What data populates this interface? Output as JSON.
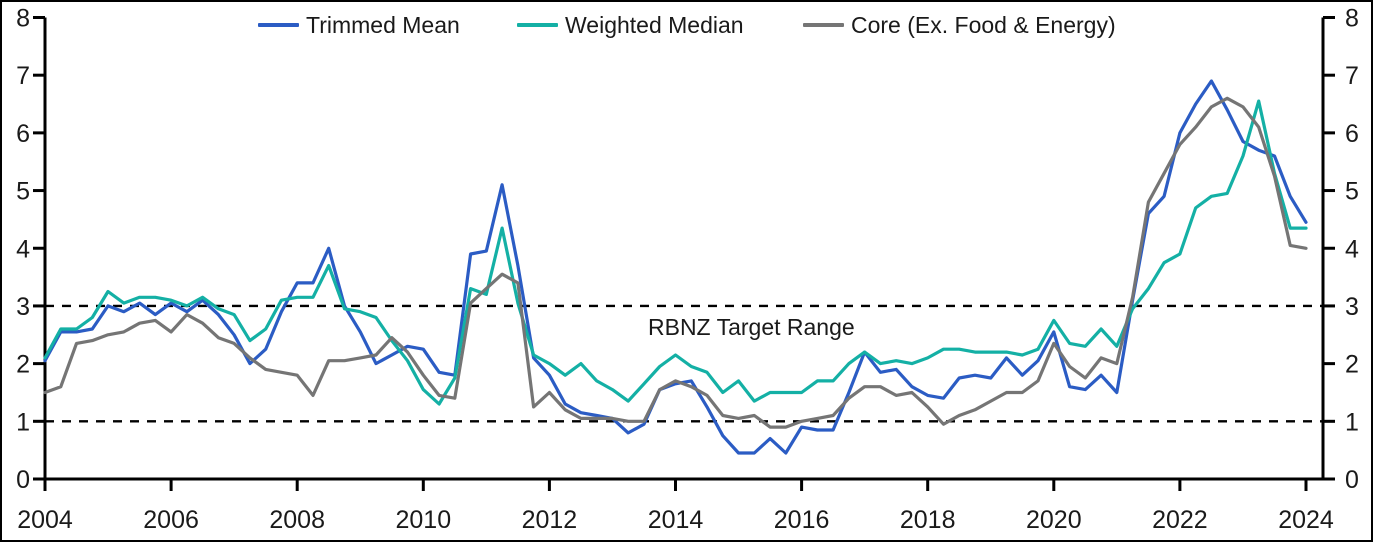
{
  "legend": [
    {
      "label": "Trimmed Mean",
      "color": "#2b5cc4"
    },
    {
      "label": "Weighted Median",
      "color": "#14b0a5"
    },
    {
      "label": "Core (Ex. Food & Energy)",
      "color": "#757575"
    }
  ],
  "annotation": {
    "target_range_label": "RBNZ Target Range"
  },
  "colors": {
    "axis": "#000000",
    "dashed_line": "#000000",
    "text": "#1a1a1a",
    "background": "#ffffff"
  },
  "chart_data": {
    "type": "line",
    "title": "",
    "xlabel": "",
    "ylabel": "",
    "ylim": [
      0,
      8
    ],
    "y_ticks": [
      0,
      1,
      2,
      3,
      4,
      5,
      6,
      7,
      8
    ],
    "x_tick_labels": [
      "2004",
      "2006",
      "2008",
      "2010",
      "2012",
      "2014",
      "2016",
      "2018",
      "2020",
      "2022",
      "2024"
    ],
    "x_start": "2004Q1",
    "x_end": "2024Q1",
    "frequency": "quarterly",
    "grid": false,
    "legend_position": "top",
    "target_range_lines": [
      1,
      3
    ],
    "series": [
      {
        "name": "Trimmed Mean",
        "color": "#2b5cc4",
        "values": [
          2.05,
          2.55,
          2.55,
          2.6,
          3.0,
          2.9,
          3.05,
          2.85,
          3.05,
          2.9,
          3.1,
          2.85,
          2.5,
          2.0,
          2.25,
          2.9,
          3.4,
          3.4,
          4.0,
          3.0,
          2.55,
          2.0,
          2.15,
          2.3,
          2.25,
          1.85,
          1.8,
          3.9,
          3.95,
          5.1,
          3.7,
          2.1,
          1.8,
          1.3,
          1.15,
          1.1,
          1.05,
          0.8,
          0.95,
          1.55,
          1.65,
          1.7,
          1.25,
          0.75,
          0.45,
          0.45,
          0.7,
          0.45,
          0.9,
          0.85,
          0.85,
          1.5,
          2.2,
          1.85,
          1.9,
          1.6,
          1.45,
          1.4,
          1.75,
          1.8,
          1.75,
          2.1,
          1.8,
          2.05,
          2.55,
          1.6,
          1.55,
          1.8,
          1.5,
          3.1,
          4.6,
          4.9,
          6.0,
          6.5,
          6.9,
          6.4,
          5.85,
          5.7,
          5.6,
          4.9,
          4.45
        ]
      },
      {
        "name": "Weighted Median",
        "color": "#14b0a5",
        "values": [
          2.1,
          2.6,
          2.6,
          2.8,
          3.25,
          3.05,
          3.15,
          3.15,
          3.1,
          3.0,
          3.15,
          2.95,
          2.85,
          2.4,
          2.6,
          3.1,
          3.15,
          3.15,
          3.7,
          2.95,
          2.9,
          2.8,
          2.4,
          2.05,
          1.55,
          1.3,
          1.75,
          3.3,
          3.2,
          4.35,
          3.05,
          2.15,
          2.0,
          1.8,
          2.0,
          1.7,
          1.55,
          1.35,
          1.65,
          1.95,
          2.15,
          1.95,
          1.85,
          1.5,
          1.7,
          1.35,
          1.5,
          1.5,
          1.5,
          1.7,
          1.7,
          2.0,
          2.2,
          2.0,
          2.05,
          2.0,
          2.1,
          2.25,
          2.25,
          2.2,
          2.2,
          2.2,
          2.15,
          2.25,
          2.75,
          2.35,
          2.3,
          2.6,
          2.3,
          2.95,
          3.3,
          3.75,
          3.9,
          4.7,
          4.9,
          4.95,
          5.6,
          6.55,
          5.3,
          4.35,
          4.35
        ]
      },
      {
        "name": "Core (Ex. Food & Energy)",
        "color": "#757575",
        "values": [
          1.5,
          1.6,
          2.35,
          2.4,
          2.5,
          2.55,
          2.7,
          2.75,
          2.55,
          2.85,
          2.7,
          2.45,
          2.35,
          2.1,
          1.9,
          1.85,
          1.8,
          1.45,
          2.05,
          2.05,
          2.1,
          2.15,
          2.45,
          2.2,
          1.8,
          1.45,
          1.4,
          3.05,
          3.3,
          3.55,
          3.4,
          1.25,
          1.5,
          1.2,
          1.05,
          1.05,
          1.05,
          1.0,
          1.0,
          1.55,
          1.7,
          1.6,
          1.45,
          1.1,
          1.05,
          1.1,
          0.9,
          0.9,
          1.0,
          1.05,
          1.1,
          1.4,
          1.6,
          1.6,
          1.45,
          1.5,
          1.25,
          0.95,
          1.1,
          1.2,
          1.35,
          1.5,
          1.5,
          1.7,
          2.35,
          1.95,
          1.75,
          2.1,
          2.0,
          3.15,
          4.8,
          5.3,
          5.8,
          6.1,
          6.45,
          6.6,
          6.45,
          6.1,
          5.25,
          4.05,
          4.0
        ]
      }
    ]
  }
}
